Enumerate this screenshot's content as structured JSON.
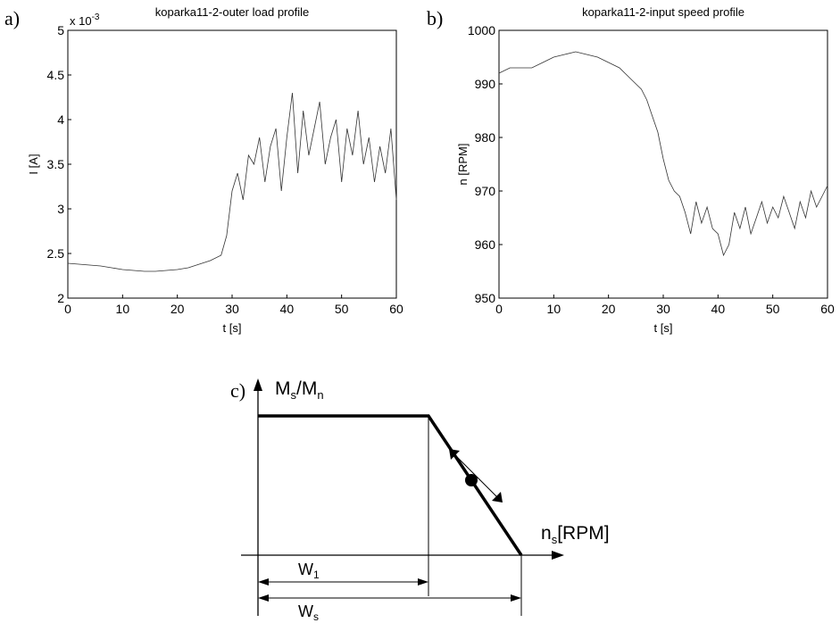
{
  "panels": {
    "a": {
      "letter": "a)"
    },
    "b": {
      "letter": "b)"
    },
    "c": {
      "letter": "c)"
    }
  },
  "chart_data": [
    {
      "type": "line",
      "title": "koparka11-2-outer load profile",
      "xlabel": "t [s]",
      "ylabel": "I [A]",
      "y_exponent_label": "x 10",
      "y_exponent_power": "-3",
      "xlim": [
        0,
        60
      ],
      "ylim": [
        2,
        5
      ],
      "xticks": [
        "0",
        "10",
        "20",
        "30",
        "40",
        "50",
        "60"
      ],
      "yticks": [
        "2",
        "2.5",
        "3",
        "3.5",
        "4",
        "4.5",
        "5"
      ],
      "grid": false,
      "line_color": "#333333",
      "series": [
        {
          "x": [
            0,
            2,
            4,
            6,
            8,
            10,
            12,
            14,
            16,
            18,
            20,
            22,
            24,
            26,
            28,
            29,
            30,
            31,
            32,
            33,
            34,
            35,
            36,
            37,
            38,
            39,
            40,
            41,
            42,
            43,
            44,
            45,
            46,
            47,
            48,
            49,
            50,
            51,
            52,
            53,
            54,
            55,
            56,
            57,
            58,
            59,
            60
          ],
          "values": [
            2.39,
            2.38,
            2.37,
            2.36,
            2.34,
            2.32,
            2.31,
            2.3,
            2.3,
            2.31,
            2.32,
            2.34,
            2.38,
            2.42,
            2.48,
            2.7,
            3.2,
            3.4,
            3.1,
            3.6,
            3.5,
            3.8,
            3.3,
            3.7,
            3.9,
            3.2,
            3.8,
            4.3,
            3.4,
            4.1,
            3.6,
            3.9,
            4.2,
            3.5,
            3.8,
            4.0,
            3.3,
            3.9,
            3.6,
            4.1,
            3.5,
            3.8,
            3.3,
            3.7,
            3.4,
            3.9,
            3.1
          ]
        }
      ]
    },
    {
      "type": "line",
      "title": "koparka11-2-input speed profile",
      "xlabel": "t [s]",
      "ylabel": "n [RPM]",
      "xlim": [
        0,
        60
      ],
      "ylim": [
        950,
        1000
      ],
      "xticks": [
        "0",
        "10",
        "20",
        "30",
        "40",
        "50",
        "60"
      ],
      "yticks": [
        "950",
        "960",
        "970",
        "980",
        "990",
        "1000"
      ],
      "grid": false,
      "line_color": "#333333",
      "series": [
        {
          "x": [
            0,
            2,
            4,
            6,
            8,
            10,
            12,
            14,
            16,
            18,
            20,
            22,
            24,
            26,
            27,
            28,
            29,
            30,
            31,
            32,
            33,
            34,
            35,
            36,
            37,
            38,
            39,
            40,
            41,
            42,
            43,
            44,
            45,
            46,
            47,
            48,
            49,
            50,
            51,
            52,
            53,
            54,
            55,
            56,
            57,
            58,
            59,
            60
          ],
          "values": [
            992,
            993,
            993,
            993,
            994,
            995,
            995.5,
            996,
            995.5,
            995,
            994,
            993,
            991,
            989,
            987,
            984,
            981,
            976,
            972,
            970,
            969,
            966,
            962,
            968,
            964,
            967,
            963,
            962,
            958,
            960,
            966,
            963,
            967,
            962,
            965,
            968,
            964,
            967,
            965,
            969,
            966,
            963,
            968,
            965,
            970,
            967,
            969,
            971
          ]
        }
      ]
    },
    {
      "type": "diagram",
      "ylabel_main": "M",
      "ylabel_sub1": "s",
      "ylabel_sep": "/M",
      "ylabel_sub2": "n",
      "xlabel_main": "n",
      "xlabel_sub": "s",
      "xlabel_unit": "[RPM]",
      "dim_w1_main": "W",
      "dim_w1_sub": "1",
      "dim_ws_main": "W",
      "dim_ws_sub": "s"
    }
  ]
}
